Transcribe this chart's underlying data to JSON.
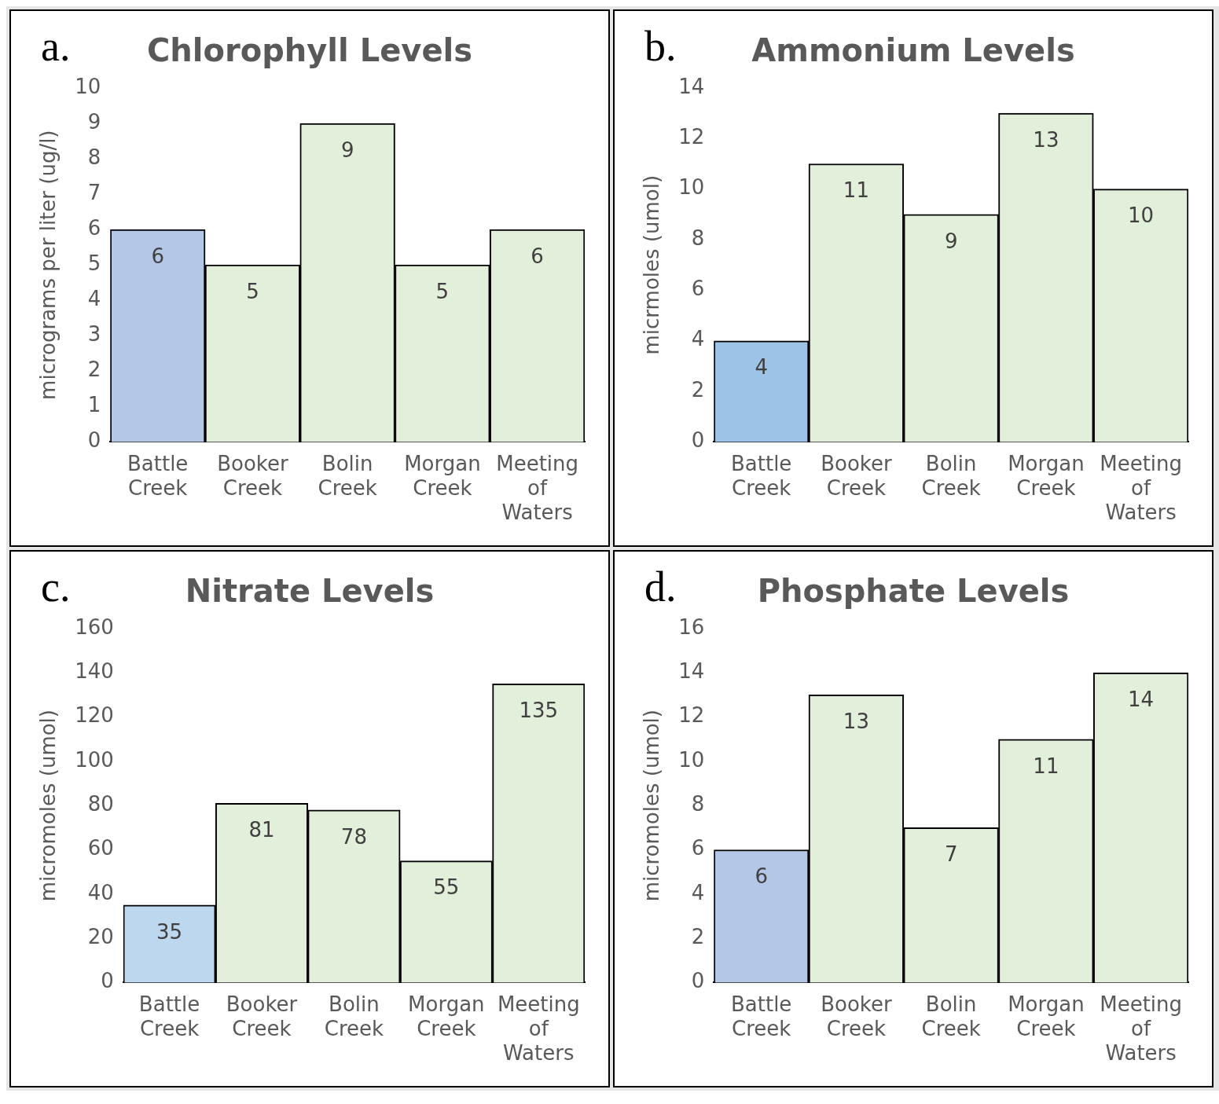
{
  "chart_data": [
    {
      "type": "bar",
      "title": "Chlorophyll Levels",
      "ylabel": "micrograms per liter (ug/l)",
      "annotations": [
        "a."
      ],
      "categories": [
        "Battle Creek",
        "Booker Creek",
        "Bolin Creek",
        "Morgan Creek",
        "Meeting of Waters"
      ],
      "values": [
        6,
        5,
        9,
        5,
        6
      ],
      "colors": [
        "#b4c7e7",
        "#e2efda",
        "#e2efda",
        "#e2efda",
        "#e2efda"
      ],
      "ylim": [
        0,
        10
      ],
      "yticks": [
        0,
        1,
        2,
        3,
        4,
        5,
        6,
        7,
        8,
        9,
        10
      ],
      "grid": false,
      "data_labels": true
    },
    {
      "type": "bar",
      "title": "Ammonium Levels",
      "ylabel": "micrmoles (umol)",
      "annotations": [
        "b."
      ],
      "categories": [
        "Battle Creek",
        "Booker Creek",
        "Bolin Creek",
        "Morgan Creek",
        "Meeting of Waters"
      ],
      "values": [
        4,
        11,
        9,
        13,
        10
      ],
      "colors": [
        "#9dc3e6",
        "#e2efda",
        "#e2efda",
        "#e2efda",
        "#e2efda"
      ],
      "ylim": [
        0,
        14
      ],
      "yticks": [
        0,
        2,
        4,
        6,
        8,
        10,
        12,
        14
      ],
      "grid": false,
      "data_labels": true
    },
    {
      "type": "bar",
      "title": "Nitrate Levels",
      "ylabel": "micromoles (umol)",
      "annotations": [
        "c."
      ],
      "categories": [
        "Battle Creek",
        "Booker Creek",
        "Bolin Creek",
        "Morgan Creek",
        "Meeting of Waters"
      ],
      "values": [
        35,
        81,
        78,
        55,
        135
      ],
      "colors": [
        "#bdd7ee",
        "#e2efda",
        "#e2efda",
        "#e2efda",
        "#e2efda"
      ],
      "ylim": [
        0,
        160
      ],
      "yticks": [
        0,
        20,
        40,
        60,
        80,
        100,
        120,
        140,
        160
      ],
      "grid": false,
      "data_labels": true
    },
    {
      "type": "bar",
      "title": "Phosphate Levels",
      "ylabel": "micromoles (umol)",
      "annotations": [
        "d."
      ],
      "categories": [
        "Battle Creek",
        "Booker Creek",
        "Bolin Creek",
        "Morgan Creek",
        "Meeting of Waters"
      ],
      "values": [
        6,
        13,
        7,
        11,
        14
      ],
      "colors": [
        "#b4c7e7",
        "#e2efda",
        "#e2efda",
        "#e2efda",
        "#e2efda"
      ],
      "ylim": [
        0,
        16
      ],
      "yticks": [
        0,
        2,
        4,
        6,
        8,
        10,
        12,
        14,
        16
      ],
      "grid": false,
      "data_labels": true
    }
  ]
}
